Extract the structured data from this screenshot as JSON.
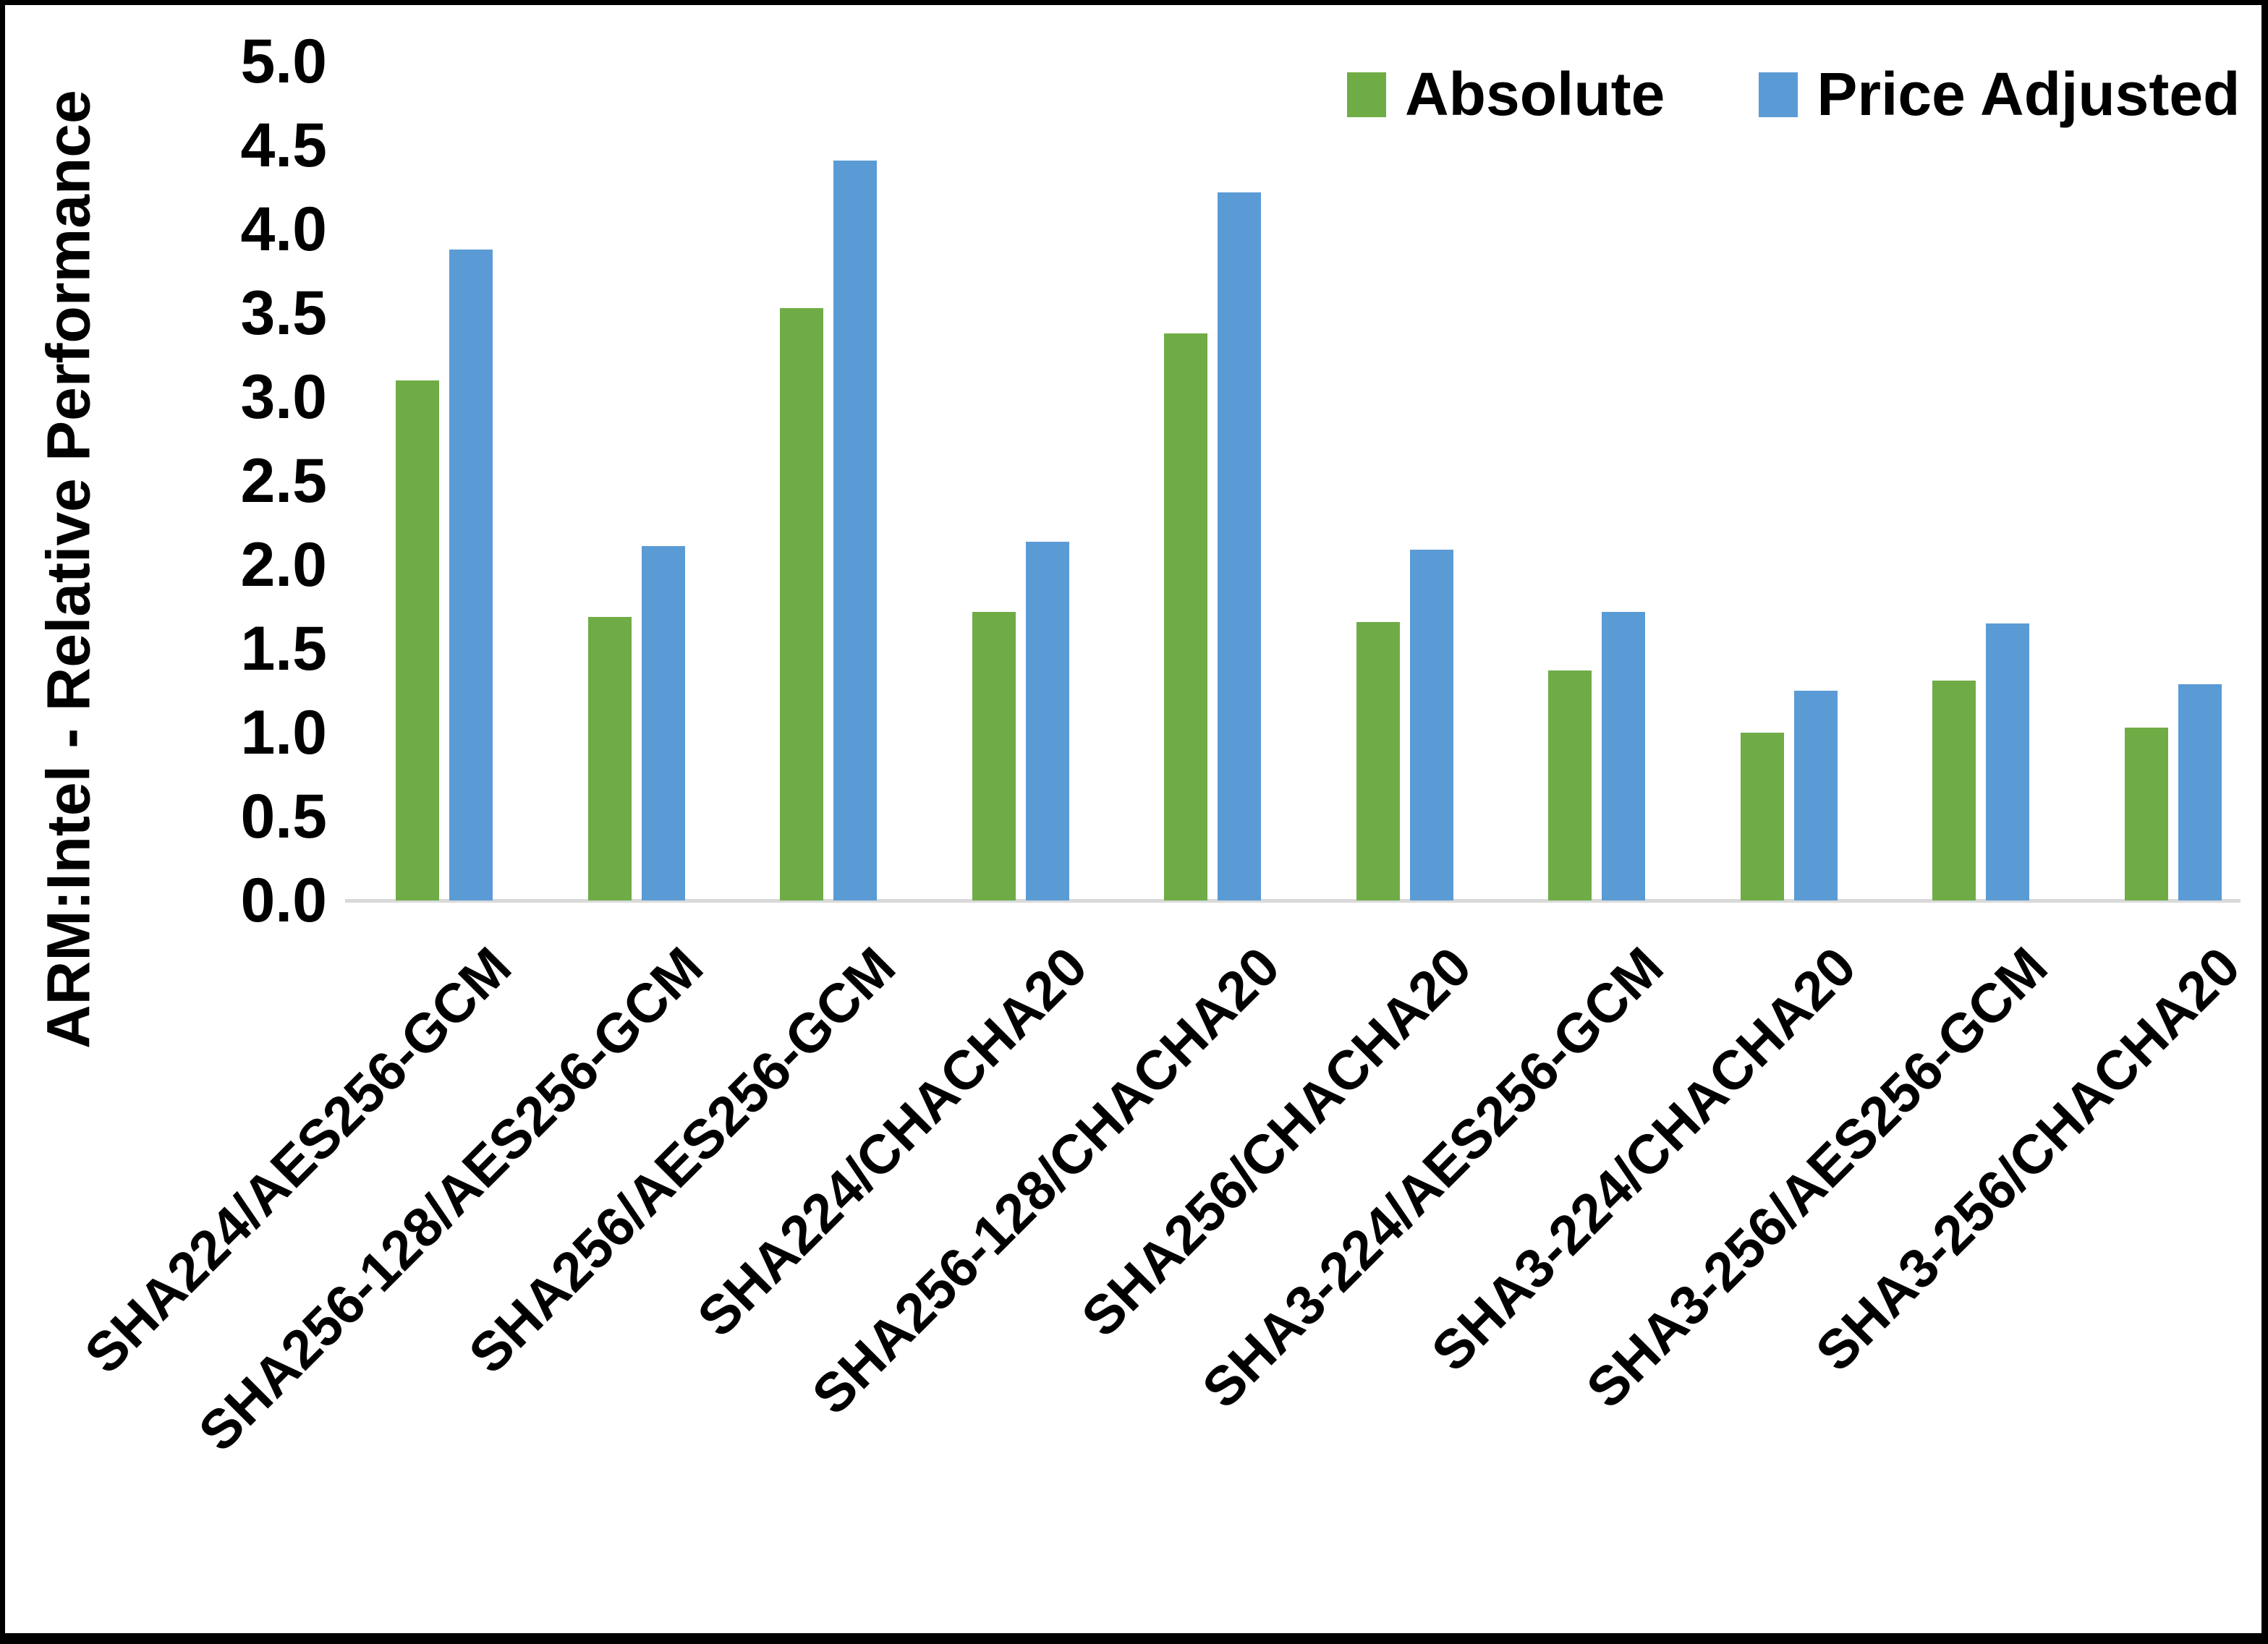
{
  "chart_data": {
    "type": "bar",
    "title": "",
    "xlabel": "",
    "ylabel": "ARM:Intel - Relative Performance",
    "ylim": [
      0,
      5
    ],
    "ytick_step": 0.5,
    "ytick_labels": [
      "5.0",
      "4.5",
      "4.0",
      "3.5",
      "3.0",
      "2.5",
      "2.0",
      "1.5",
      "1.0",
      "0.5",
      "0.0"
    ],
    "grid": false,
    "legend_position": "top-right",
    "categories": [
      "SHA224/AES256-GCM",
      "SHA256-128/AES256-GCM",
      "SHA256/AES256-GCM",
      "SHA224/CHACHA20",
      "SHA256-128/CHACHA20",
      "SHA256/CHACHA20",
      "SHA3-224/AES256-GCM",
      "SHA3-224/CHACHA20",
      "SHA3-256/AES256-GCM",
      "SHA3-256/CHACHA20"
    ],
    "series": [
      {
        "name": "Absolute",
        "color": "#6FAC46",
        "values": [
          3.1,
          1.69,
          3.53,
          1.72,
          3.38,
          1.66,
          1.37,
          1.0,
          1.31,
          1.03
        ]
      },
      {
        "name": "Price Adjusted",
        "color": "#5B9BD5",
        "values": [
          3.88,
          2.11,
          4.41,
          2.14,
          4.22,
          2.09,
          1.72,
          1.25,
          1.65,
          1.29
        ]
      }
    ],
    "axis_line_color": "#D9D9D9",
    "text_color": "#000000"
  }
}
